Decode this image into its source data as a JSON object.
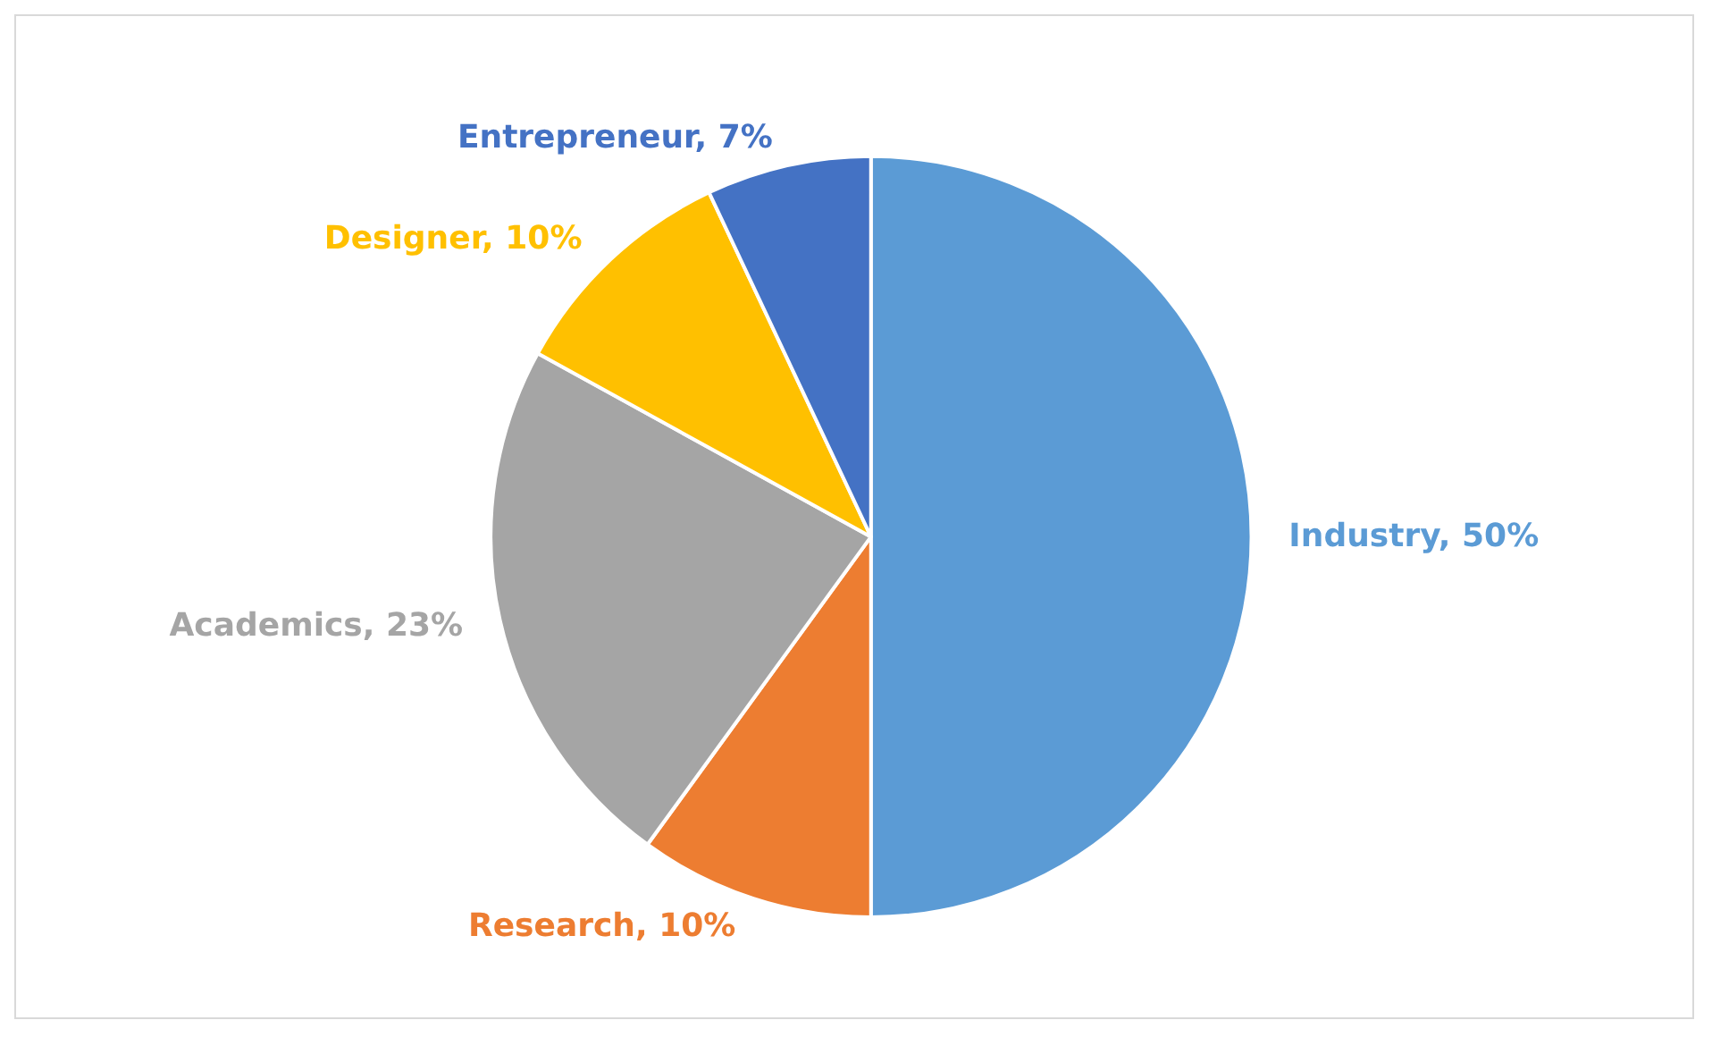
{
  "chart_data": {
    "type": "pie",
    "categories": [
      "Industry",
      "Research",
      "Academics",
      "Designer",
      "Entrepreneur"
    ],
    "values": [
      50,
      10,
      23,
      10,
      7
    ],
    "value_labels": [
      "50%",
      "10%",
      "23%",
      "10%",
      "7%"
    ],
    "colors": [
      "#5b9bd5",
      "#ed7d31",
      "#a5a5a5",
      "#ffc000",
      "#4472c4"
    ],
    "legend": false
  }
}
